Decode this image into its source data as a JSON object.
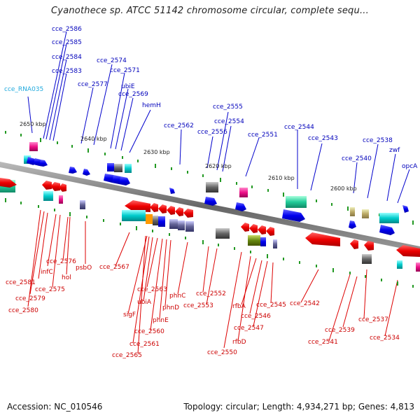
{
  "title": "Cyanothece sp. ATCC 51142 chromosome circular, complete sequ...",
  "accession": "Accession: NC_010546",
  "summary": "Topology: circular; Length: 4,934,271 bp; Genes: 4,813",
  "scale_labels": [
    "2650 kbp",
    "2640 kbp",
    "2630 kbp",
    "2620 kbp",
    "2610 kbp",
    "2600 kbp"
  ],
  "top_labels": [
    "cce_2586",
    "cce_2585",
    "cce_2584",
    "cce_2583",
    "cce_RNA035",
    "cce_2574",
    "cce_2571",
    "cce_2577",
    "ubiE",
    "cce_2569",
    "hemH",
    "cce_2555",
    "cce_2554",
    "cce_2562",
    "cce_2556",
    "cce_2551",
    "cce_2544",
    "cce_2543",
    "cce_2538",
    "cce_2540",
    "zwf",
    "opcA"
  ],
  "bottom_labels": [
    "cce_2576",
    "infC",
    "hol",
    "psbO",
    "cce_2581",
    "cce_2575",
    "cce_2579",
    "cce_2580",
    "cce_2567",
    "cce_2563",
    "ubiA",
    "sigF",
    "phnD",
    "phnC",
    "phnE",
    "cce_2560",
    "cce_2561",
    "cce_2565",
    "cce_2552",
    "cce_2553",
    "rfbA",
    "cce_2545",
    "cce_2546",
    "cce_2547",
    "rfbD",
    "cce_2550",
    "cce_2542",
    "cce_2537",
    "cce_2539",
    "cce_2541",
    "cce_2534"
  ],
  "colors": {
    "forward": "#0000ee",
    "reverse": "#ee0000",
    "backbone": "#888888",
    "tick": "#229922"
  }
}
